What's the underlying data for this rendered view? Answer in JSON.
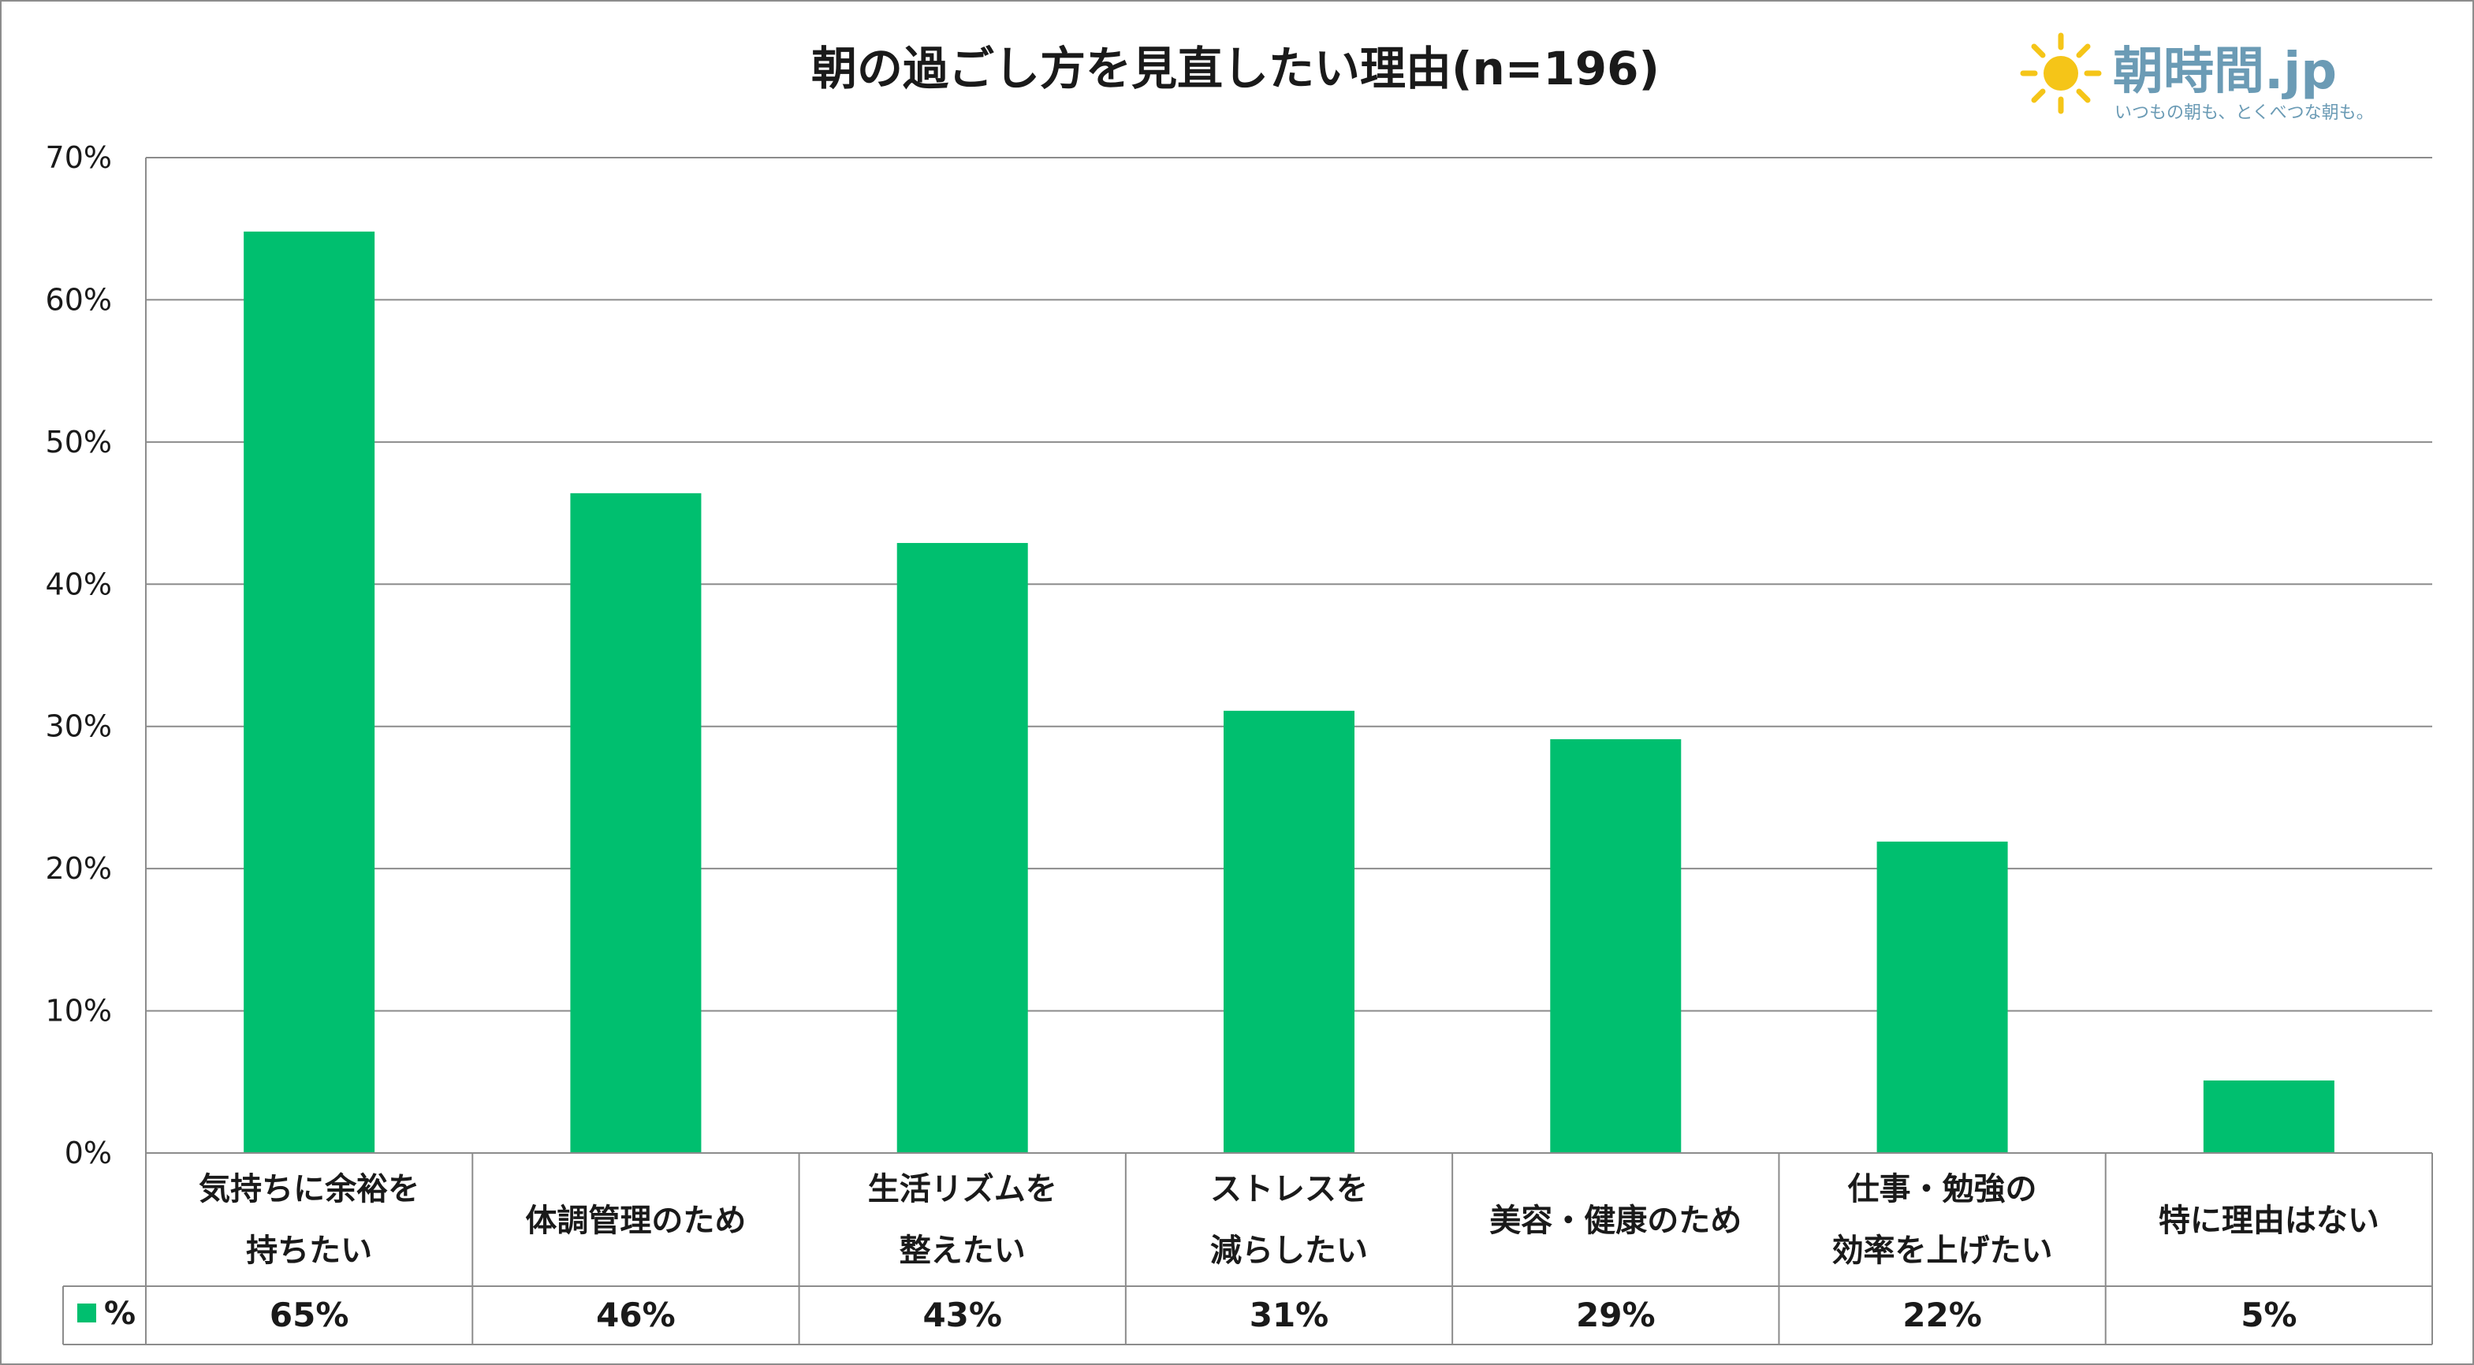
{
  "chart_data": {
    "type": "bar",
    "title": "朝の過ごし方を見直したい理由(n=196)",
    "categories": [
      [
        "気持ちに余裕を",
        "持ちたい"
      ],
      [
        "体調管理のため"
      ],
      [
        "生活リズムを",
        "整えたい"
      ],
      [
        "ストレスを",
        "減らしたい"
      ],
      [
        "美容・健康のため"
      ],
      [
        "仕事・勉強の",
        "効率を上げたい"
      ],
      [
        "特に理由はない"
      ]
    ],
    "series": [
      {
        "name": "%",
        "values": [
          64.8,
          46.4,
          42.9,
          31.1,
          29.1,
          21.9,
          5.1
        ],
        "labels": [
          "65%",
          "46%",
          "43%",
          "31%",
          "29%",
          "22%",
          "5%"
        ]
      }
    ],
    "ylim": [
      0,
      70
    ],
    "yticks": [
      "0%",
      "10%",
      "20%",
      "30%",
      "40%",
      "50%",
      "60%",
      "70%"
    ],
    "xlabel": "",
    "ylabel": "",
    "grid": true,
    "legend": "data-table"
  },
  "colors": {
    "bar": "#00bf6f",
    "grid": "#8c8c8c",
    "logo_sun": "#f5c518",
    "logo_text": "#6b9bb5"
  },
  "logo": {
    "text": "朝時間.jp",
    "tagline": "いつもの朝も、とくべつな朝も。"
  }
}
